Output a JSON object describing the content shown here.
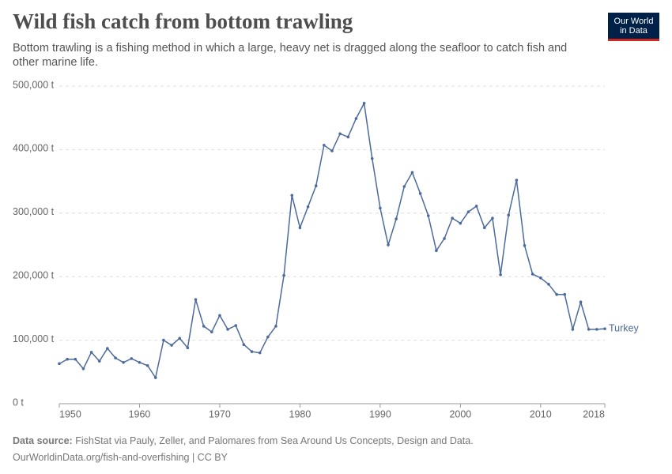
{
  "chart_data": {
    "type": "line",
    "title": "Wild fish catch from bottom trawling",
    "subtitle": "Bottom trawling is a fishing method in which a large, heavy net is dragged along the seafloor to catch fish and other marine life.",
    "logo": [
      "Our World",
      "in Data"
    ],
    "source_label": "Data source:",
    "source": "FishStat via Pauly, Zeller, and Palomares from Sea Around Us Concepts, Design and Data.",
    "url": "OurWorldinData.org/fish-and-overfishing | CC BY",
    "x": [
      1950,
      1951,
      1952,
      1953,
      1954,
      1955,
      1956,
      1957,
      1958,
      1959,
      1960,
      1961,
      1962,
      1963,
      1964,
      1965,
      1966,
      1967,
      1968,
      1969,
      1970,
      1971,
      1972,
      1973,
      1974,
      1975,
      1976,
      1977,
      1978,
      1979,
      1980,
      1981,
      1982,
      1983,
      1984,
      1985,
      1986,
      1987,
      1988,
      1989,
      1990,
      1991,
      1992,
      1993,
      1994,
      1995,
      1996,
      1997,
      1998,
      1999,
      2000,
      2001,
      2002,
      2003,
      2004,
      2005,
      2006,
      2007,
      2008,
      2009,
      2010,
      2011,
      2012,
      2013,
      2014,
      2015,
      2016,
      2017,
      2018
    ],
    "series": [
      {
        "name": "Turkey",
        "color": "#4c6a9c",
        "values": [
          63000,
          70000,
          70000,
          55000,
          81000,
          67000,
          87000,
          72000,
          65000,
          71000,
          65000,
          60000,
          41000,
          100000,
          92000,
          103000,
          88000,
          164000,
          122000,
          113000,
          139000,
          117000,
          123000,
          93000,
          82000,
          80000,
          105000,
          122000,
          202000,
          328000,
          277000,
          310000,
          343000,
          407000,
          398000,
          425000,
          420000,
          449000,
          473000,
          386000,
          308000,
          250000,
          291000,
          342000,
          364000,
          331000,
          296000,
          241000,
          260000,
          292000,
          284000,
          302000,
          311000,
          277000,
          292000,
          203000,
          297000,
          352000,
          249000,
          204000,
          198000,
          188000,
          172000,
          172000,
          117000,
          160000,
          117000,
          117000,
          118000
        ]
      }
    ],
    "xlim": [
      1950,
      2018
    ],
    "xticks": [
      1950,
      1960,
      1970,
      1980,
      1990,
      2000,
      2010,
      2018
    ],
    "ylim": [
      0,
      500000
    ],
    "yticks": [
      {
        "value": 0,
        "label": "0 t"
      },
      {
        "value": 100000,
        "label": "100,000 t"
      },
      {
        "value": 200000,
        "label": "200,000 t"
      },
      {
        "value": 300000,
        "label": "300,000 t"
      },
      {
        "value": 400000,
        "label": "400,000 t"
      },
      {
        "value": 500000,
        "label": "500,000 t"
      }
    ],
    "grid": true
  }
}
